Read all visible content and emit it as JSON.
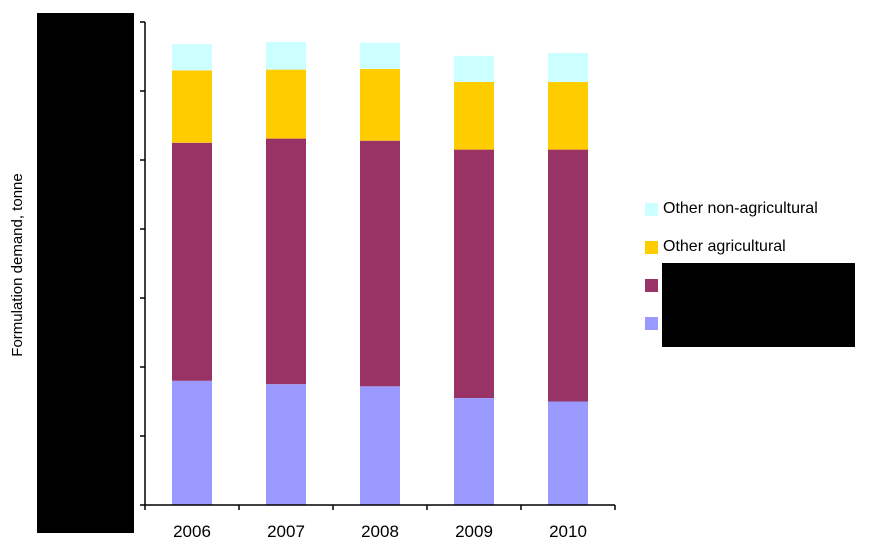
{
  "chart_data": {
    "type": "bar",
    "stacked": true,
    "title": "",
    "xlabel": "",
    "ylabel": "Formulation demand, tonne",
    "categories": [
      "2006",
      "2007",
      "2008",
      "2009",
      "2010"
    ],
    "ylim": [
      0,
      7
    ],
    "series": [
      {
        "name": "",
        "color": "#9999FF",
        "values": [
          1.8,
          1.75,
          1.72,
          1.55,
          1.5
        ]
      },
      {
        "name": "",
        "color": "#993366",
        "values": [
          3.45,
          3.56,
          3.56,
          3.6,
          3.65
        ]
      },
      {
        "name": "Other agricultural",
        "color": "#FFCC00",
        "values": [
          1.05,
          1.0,
          1.04,
          0.98,
          0.98
        ]
      },
      {
        "name": "Other non-agricultural",
        "color": "#CCFFFF",
        "values": [
          0.38,
          0.4,
          0.38,
          0.38,
          0.42
        ]
      }
    ],
    "grid": false,
    "legend_position": "right",
    "redacted_regions": [
      "y-axis tick labels",
      "two legend labels"
    ]
  }
}
